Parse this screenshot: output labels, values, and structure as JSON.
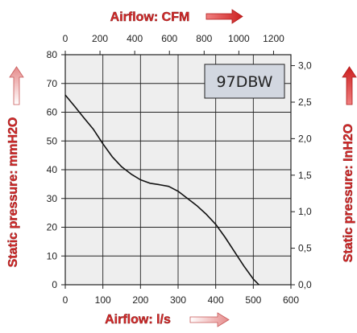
{
  "chart_data": {
    "type": "line",
    "model_label": "97DBW",
    "xlabel_bottom": "Airflow: l/s",
    "xlabel_top": "Airflow: CFM",
    "ylabel_left": "Static pressure: mmH2O",
    "ylabel_right": "Static pressure: InH2O",
    "x_bottom_ticks": [
      "0",
      "100",
      "200",
      "300",
      "400",
      "500",
      "600"
    ],
    "x_top_ticks": [
      "0",
      "200",
      "400",
      "600",
      "800",
      "1000",
      "1200"
    ],
    "y_left_ticks": [
      "0",
      "10",
      "20",
      "30",
      "40",
      "50",
      "60",
      "70",
      "80"
    ],
    "y_right_ticks": [
      "0,0",
      "0,5",
      "1,0",
      "1,5",
      "2,0",
      "2,5",
      "3,0"
    ],
    "xlim": [
      0,
      600
    ],
    "ylim": [
      0,
      80
    ],
    "grid": true,
    "colors": {
      "title_red": "#d42a2a",
      "plot_bg": "#eeeeee",
      "label_box": "#d2d7e0"
    },
    "series": [
      {
        "x": [
          0,
          25,
          50,
          75,
          100,
          125,
          150,
          175,
          200,
          225,
          250,
          275,
          300,
          325,
          350,
          375,
          400,
          425,
          450,
          475,
          500,
          515
        ],
        "y": [
          66,
          62,
          58,
          54,
          49,
          44.5,
          41,
          38.5,
          36.5,
          35.3,
          34.8,
          34.2,
          32.5,
          30,
          27.5,
          24.5,
          21,
          16.5,
          11.5,
          6.5,
          2,
          0
        ]
      }
    ]
  }
}
